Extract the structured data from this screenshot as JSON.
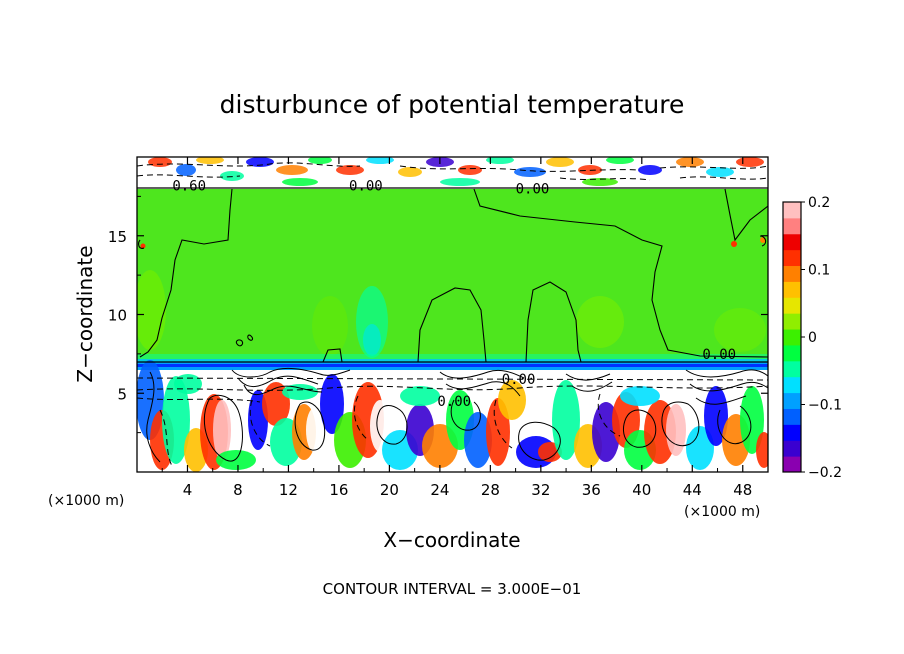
{
  "chart_data": {
    "type": "heatmap",
    "title": "disturbunce of potential temperature",
    "xlabel": "X−coordinate",
    "ylabel": "Z−coordinate",
    "x_unit_left": "(×1000 m)",
    "x_unit_right": "(×1000 m)",
    "footer": "CONTOUR INTERVAL = 3.000E−01",
    "xlim": [
      0,
      50
    ],
    "ylim": [
      0,
      20
    ],
    "x_ticks": [
      "4",
      "8",
      "12",
      "16",
      "20",
      "24",
      "28",
      "32",
      "36",
      "40",
      "44",
      "48"
    ],
    "x_tick_values": [
      4,
      8,
      12,
      16,
      20,
      24,
      28,
      32,
      36,
      40,
      44,
      48
    ],
    "y_ticks": [
      "5",
      "10",
      "15"
    ],
    "y_tick_values": [
      5,
      10,
      15
    ],
    "colorbar": {
      "range": [
        -0.2,
        0.2
      ],
      "tick_labels": [
        "0.2",
        "0.1",
        "0",
        "−0.1",
        "−0.2"
      ],
      "tick_values": [
        0.2,
        0.1,
        0,
        -0.1,
        -0.2
      ],
      "colors": [
        "#8a00b0",
        "#3a00d0",
        "#0000ff",
        "#0060ff",
        "#00a0ff",
        "#00e0ff",
        "#00ffa0",
        "#00ff40",
        "#3cf000",
        "#90ee00",
        "#e6e600",
        "#ffc000",
        "#ff8000",
        "#ff3000",
        "#ee0000",
        "#ff8080",
        "#ffc0c0"
      ]
    },
    "contour_labels": [
      {
        "text": "0.60",
        "x": 2.8,
        "z": 18.2
      },
      {
        "text": "0.00",
        "x": 16.8,
        "z": 18.2
      },
      {
        "text": "0.00",
        "x": 30.0,
        "z": 18.0
      },
      {
        "text": "0.00",
        "x": 44.8,
        "z": 7.5
      },
      {
        "text": "0.00",
        "x": 23.8,
        "z": 4.5
      },
      {
        "text": "0.00",
        "x": 28.9,
        "z": 5.9
      }
    ],
    "grid": false
  }
}
